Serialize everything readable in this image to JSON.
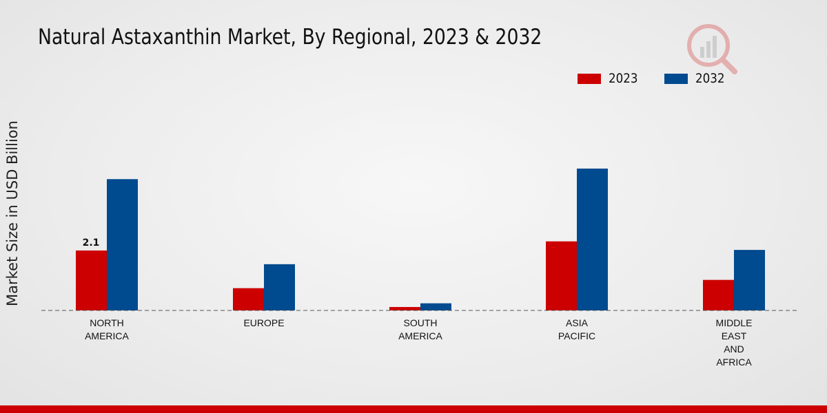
{
  "chart_data": {
    "type": "bar",
    "title": "Natural Astaxanthin Market, By Regional, 2023 & 2032",
    "ylabel": "Market Size in USD Billion",
    "xlabel": "",
    "categories": [
      [
        "NORTH",
        "AMERICA"
      ],
      [
        "EUROPE"
      ],
      [
        "SOUTH",
        "AMERICA"
      ],
      [
        "ASIA",
        "PACIFIC"
      ],
      [
        "MIDDLE",
        "EAST",
        "AND",
        "AFRICA"
      ]
    ],
    "series": [
      {
        "name": "2023",
        "color": "#cc0000",
        "values": [
          2.1,
          0.78,
          0.12,
          2.42,
          1.07
        ]
      },
      {
        "name": "2032",
        "color": "#004a8f",
        "values": [
          4.6,
          1.62,
          0.25,
          4.97,
          2.12
        ]
      }
    ],
    "data_labels": [
      {
        "series": 0,
        "index": 0,
        "text": "2.1"
      }
    ],
    "ylim": [
      0,
      7.5
    ],
    "grid": false,
    "legend_position": "top-right"
  }
}
